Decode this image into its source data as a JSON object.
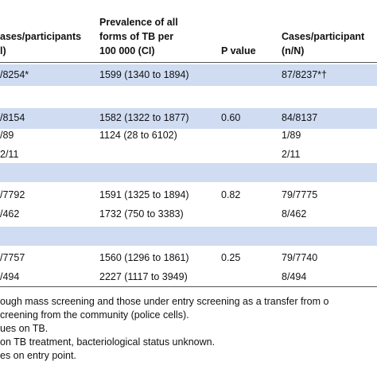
{
  "header": {
    "col1": [
      "ases/participants",
      "l)"
    ],
    "col2": [
      "Prevalence of all",
      "forms of TB per",
      "100 000 (CI)"
    ],
    "col3": "P value",
    "col4": [
      "Cases/participant",
      "(n/N)"
    ]
  },
  "rows": [
    {
      "c1": "/8254*",
      "c2": "1599 (1340 to 1894)",
      "c3": "",
      "c4": "87/8237*†",
      "band": true
    },
    {
      "c1": "",
      "c2": "",
      "c3": "",
      "c4": "",
      "band": false
    },
    {
      "c1": "/8154",
      "c2": "1582 (1322 to 1877)",
      "c3": "0.60",
      "c4": "84/8137",
      "band": true
    },
    {
      "c1": "/89",
      "c2": "1124 (28 to 6102)",
      "c3": "",
      "c4": "1/89",
      "band": false
    },
    {
      "c1": "2/11",
      "c2": "",
      "c3": "",
      "c4": "2/11",
      "band": false
    },
    {
      "c1": "",
      "c2": "",
      "c3": "",
      "c4": "",
      "band": true
    },
    {
      "c1": "/7792",
      "c2": "1591 (1325 to 1894)",
      "c3": "0.82",
      "c4": "79/7775",
      "band": false
    },
    {
      "c1": "/462",
      "c2": "1732 (750 to 3383)",
      "c3": "",
      "c4": "8/462",
      "band": false
    },
    {
      "c1": "",
      "c2": "",
      "c3": "",
      "c4": "",
      "band": true
    },
    {
      "c1": "/7757",
      "c2": "1560 (1296 to 1861)",
      "c3": "0.25",
      "c4": "79/7740",
      "band": false
    },
    {
      "c1": "/494",
      "c2": "2227 (1117 to 3949)",
      "c3": "",
      "c4": "8/494",
      "band": false
    }
  ],
  "footnotes": [
    "ough mass screening and those under entry screening as a transfer from o",
    "creening from the community (police cells).",
    "ues on TB.",
    " on TB treatment, bacteriological status unknown.",
    "es on entry point."
  ]
}
